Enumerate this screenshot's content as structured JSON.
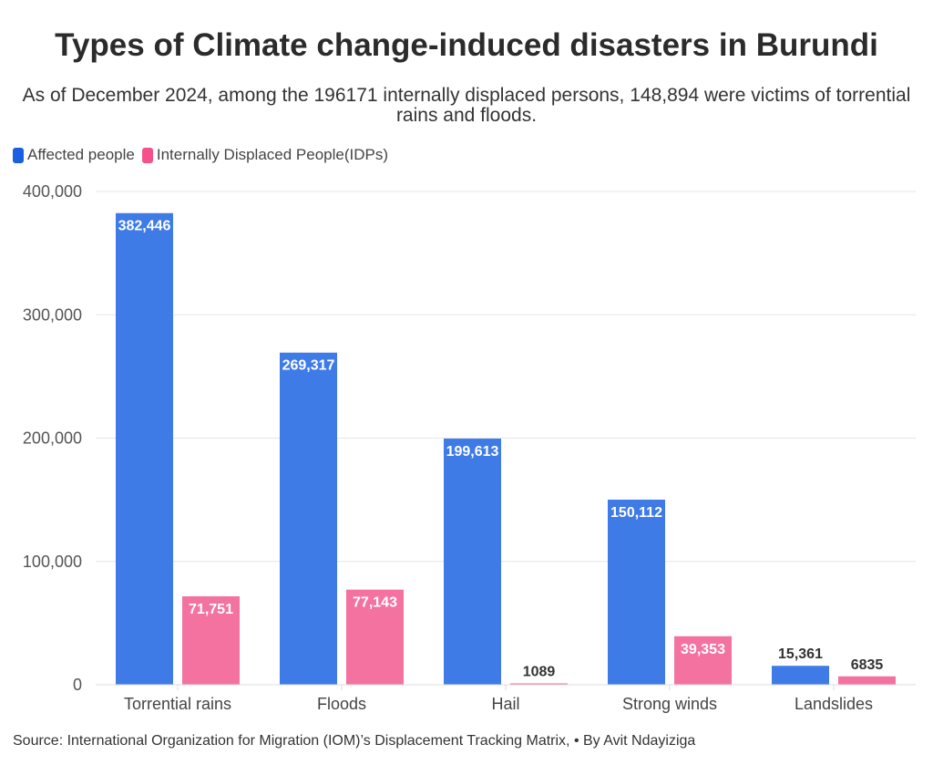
{
  "title": "Types of Climate change-induced disasters in Burundi",
  "subtitle": "As of December 2024, among the 196171 internally displaced persons, 148,894 were victims of torrential rains and floods.",
  "source": "Source: International Organization for Migration (IOM)’s Displacement Tracking Matrix, • By Avit Ndayiziga",
  "colors": {
    "affected": "#3f7be6",
    "idps": "#f472a0",
    "legend_affected": "#1a5fe0",
    "legend_idps": "#f5508a"
  },
  "chart_data": {
    "type": "bar",
    "categories": [
      "Torrential rains",
      "Floods",
      "Hail",
      "Strong winds",
      "Landslides"
    ],
    "series": [
      {
        "name": "Affected people",
        "values": [
          382446,
          269317,
          199613,
          150112,
          15361
        ],
        "labels": [
          "382,446",
          "269,317",
          "199,613",
          "150,112",
          "15,361"
        ]
      },
      {
        "name": "Internally Displaced People(IDPs)",
        "values": [
          71751,
          77143,
          1089,
          39353,
          6835
        ],
        "labels": [
          "71,751",
          "77,143",
          "1089",
          "39,353",
          "6835"
        ]
      }
    ],
    "ylim": [
      0,
      400000
    ],
    "yticks": [
      0,
      100000,
      200000,
      300000,
      400000
    ],
    "ytick_labels": [
      "0",
      "100,000",
      "200,000",
      "300,000",
      "400,000"
    ],
    "grid": true,
    "legend": "top-left"
  }
}
